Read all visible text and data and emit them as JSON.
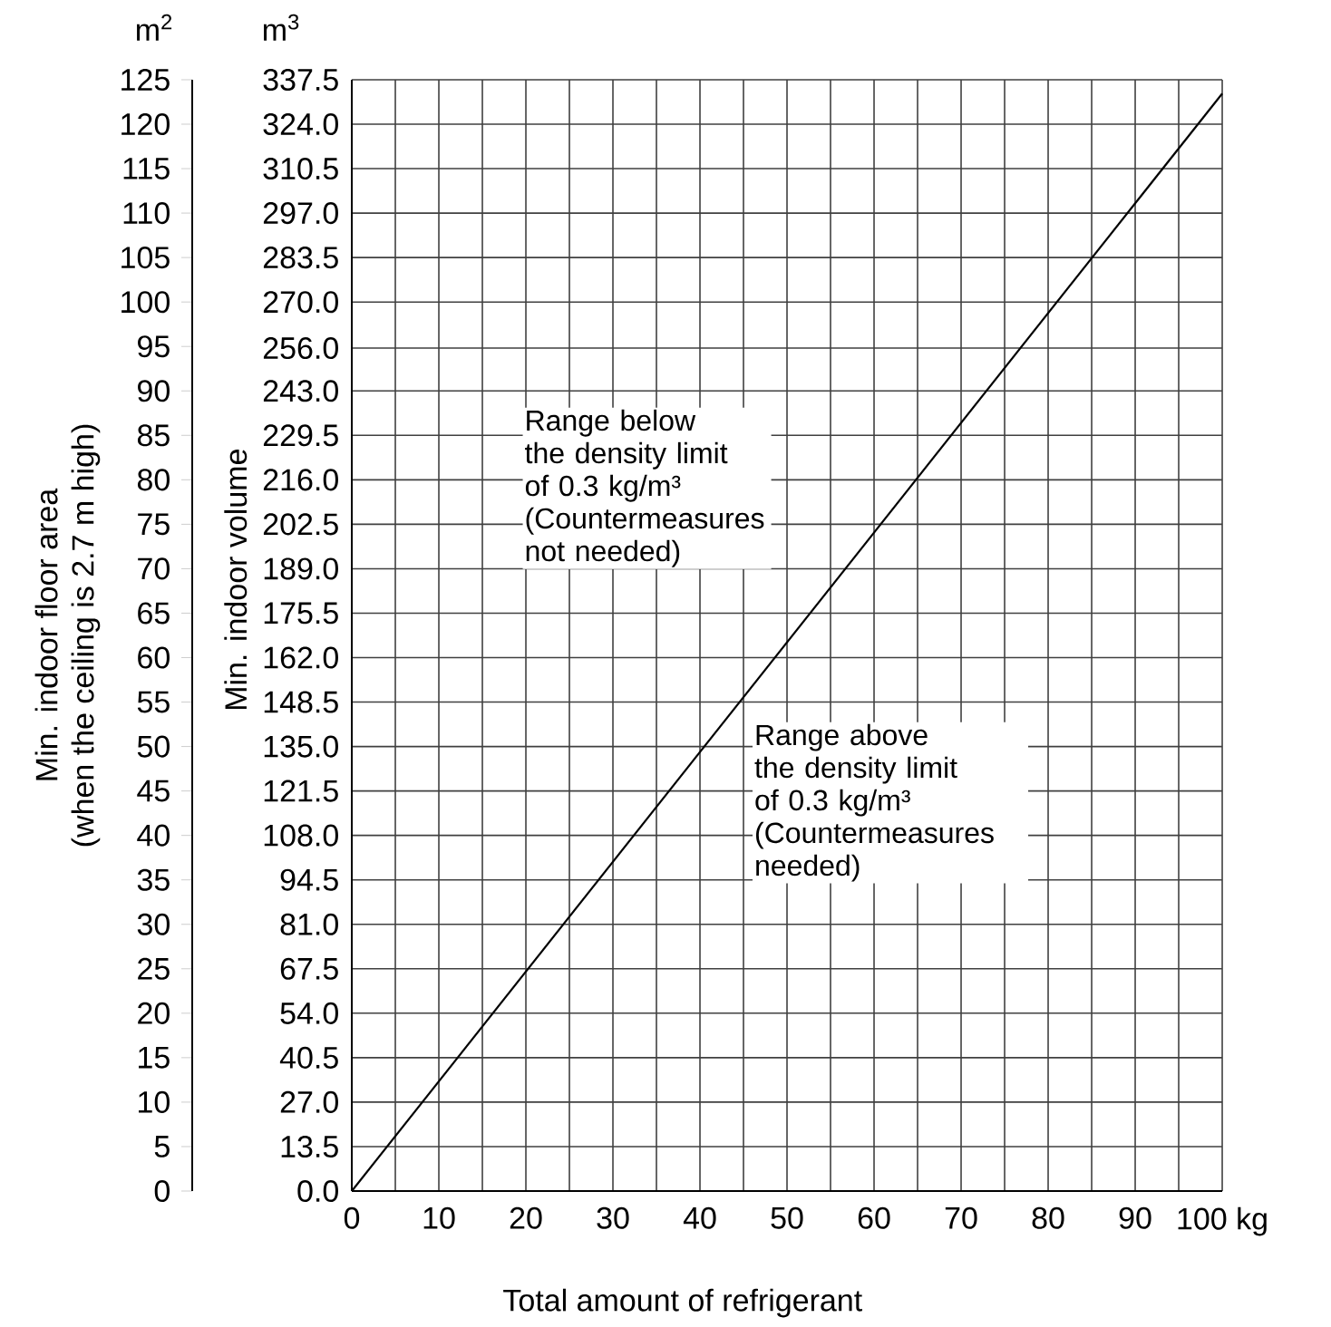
{
  "chart_data": {
    "type": "line",
    "xlabel": "Total amount of refrigerant",
    "ylabel": "Min. indoor volume",
    "y2label": "Min. indoor floor area\n(when the ceiling is 2.7 m high)",
    "x": [
      0,
      100
    ],
    "series": [
      {
        "color": "#000000",
        "values": [
          0,
          333.3
        ]
      }
    ],
    "xlim": [
      0,
      100
    ],
    "xticks": [
      0,
      {
        "value": 5,
        "label": null
      },
      10,
      {
        "value": 15,
        "label": null
      },
      20,
      {
        "value": 25,
        "label": null
      },
      30,
      {
        "value": 35,
        "label": null
      },
      40,
      {
        "value": 45,
        "label": null
      },
      50,
      {
        "value": 55,
        "label": null
      },
      60,
      {
        "value": 65,
        "label": null
      },
      70,
      {
        "value": 75,
        "label": null
      },
      80,
      {
        "value": 85,
        "label": null
      },
      90,
      {
        "value": 95,
        "label": null
      },
      {
        "value": 100,
        "label": "100 kg"
      }
    ],
    "ylim": [
      0,
      337.5
    ],
    "yticks": [
      {
        "value": 0,
        "label": "0.0"
      },
      {
        "value": 13.5,
        "label": "13.5"
      },
      {
        "value": 27,
        "label": "27.0"
      },
      {
        "value": 40.5,
        "label": "40.5"
      },
      {
        "value": 54,
        "label": "54.0"
      },
      {
        "value": 67.5,
        "label": "67.5"
      },
      {
        "value": 81,
        "label": "81.0"
      },
      {
        "value": 94.5,
        "label": "94.5"
      },
      {
        "value": 108,
        "label": "108.0"
      },
      {
        "value": 121.5,
        "label": "121.5"
      },
      {
        "value": 135,
        "label": "135.0"
      },
      {
        "value": 148.5,
        "label": "148.5"
      },
      {
        "value": 162,
        "label": "162.0"
      },
      {
        "value": 175.5,
        "label": "175.5"
      },
      {
        "value": 189,
        "label": "189.0"
      },
      {
        "value": 202.5,
        "label": "202.5"
      },
      {
        "value": 216,
        "label": "216.0"
      },
      {
        "value": 229.5,
        "label": "229.5"
      },
      {
        "value": 243,
        "label": "243.0"
      },
      {
        "value": 256,
        "label": "256.0"
      },
      {
        "value": 270,
        "label": "270.0"
      },
      {
        "value": 283.5,
        "label": "283.5"
      },
      {
        "value": 297,
        "label": "297.0"
      },
      {
        "value": 310.5,
        "label": "310.5"
      },
      {
        "value": 324,
        "label": "324.0"
      },
      {
        "value": 337.5,
        "label": "337.5"
      }
    ],
    "y2lim": [
      0,
      125
    ],
    "y2ticks": [
      0,
      5,
      10,
      15,
      20,
      25,
      30,
      35,
      40,
      45,
      50,
      55,
      60,
      65,
      70,
      75,
      80,
      85,
      90,
      95,
      100,
      105,
      110,
      115,
      120,
      125
    ],
    "grid": true,
    "marker": "none",
    "line_style": "solid",
    "annotations": [
      "m$^{3}$",
      "m$^{2}$",
      "Range below the density limit of 0.3 kg/m³ (Countermeasures not needed)",
      "Range above the density limit of 0.3 kg/m³ (Countermeasures needed)"
    ]
  }
}
